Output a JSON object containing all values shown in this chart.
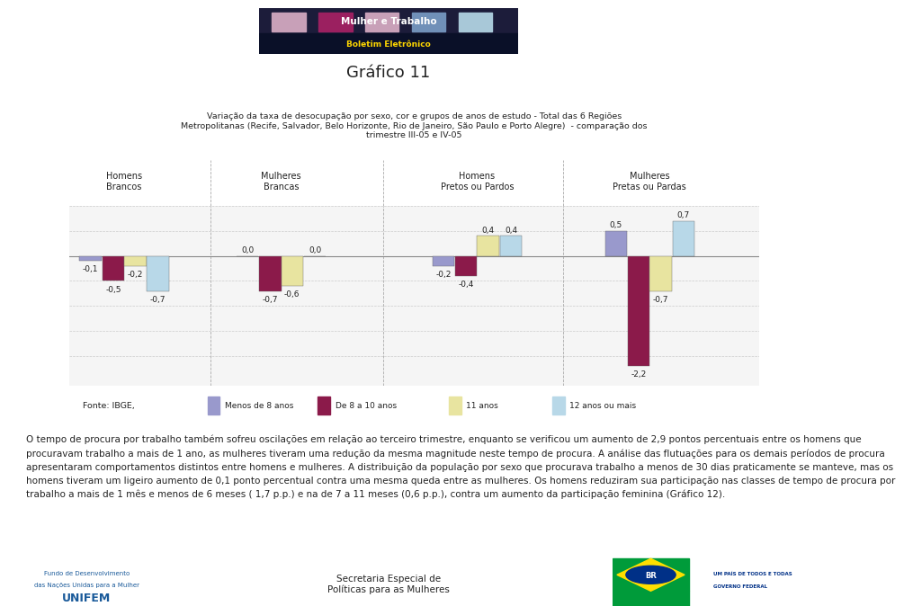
{
  "title_main": "Gráfico 11",
  "subtitle": "Variação da taxa de desocupação por sexo, cor e grupos de anos de estudo - Total das 6 Regiões\nMetropolitanas (Recife, Salvador, Belo Horizonte, Rio de Janeiro, São Paulo e Porto Alegre)  - comparação dos\ntrimestre III-05 e IV-05",
  "group_labels": [
    "Homens\nBrancos",
    "Mulheres\nBrancas",
    "Homens\nPretos ou Pardos",
    "Mulheres\nPretas ou Pardas"
  ],
  "legend_labels": [
    "Menos de 8 anos",
    "De 8 a 10 anos",
    "11 anos",
    "12 anos ou mais"
  ],
  "bar_colors": [
    "#9999cc",
    "#8B1A4A",
    "#E8E4A0",
    "#B8D8E8"
  ],
  "fonte": "Fonte: IBGE,",
  "data_values": [
    [
      -0.1,
      -0.5,
      -0.2,
      -0.7
    ],
    [
      0.0,
      -0.7,
      -0.6,
      0.0
    ],
    [
      -0.2,
      -0.4,
      0.4,
      0.4
    ],
    [
      0.5,
      -2.2,
      -0.7,
      0.7
    ]
  ],
  "ylim": [
    -2.6,
    1.0
  ],
  "body_text_lines": [
    "O tempo de procura por trabalho também sofreu oscilações em relação ao terceiro trimestre, enquanto se verificou um aumento de 2,9 pontos percentuais entre os homens que",
    "procuravam trabalho a mais de 1 ano, as mulheres tiveram uma redução da mesma magnitude neste tempo de procura. A análise das flutuações para os demais períodos de procura",
    "apresentaram comportamentos distintos entre homens e mulheres. A distribuição da população por sexo que procurava trabalho a menos de 30 dias praticamente se manteve, mas os",
    "homens tiveram um ligeiro aumento de 0,1 ponto percentual contra uma mesma queda entre as mulheres. Os homens reduziram sua participação nas classes de tempo de procura por",
    "trabalho a mais de 1 mês e menos de 6 meses ( 1,7 p.p.) e na de 7 a 11 meses (0,6 p.p.), contra um aumento da participação feminina (Gráfico 12)."
  ],
  "header_bg": "#1C1C3A",
  "header_stripe": "#2A3A6A",
  "boletim_bg": "#1A2040",
  "chart_outer_bg": "#EBEBEB",
  "chart_inner_bg": "#F5F5F5",
  "legend_bg": "#E0E0E0",
  "footer_text_center": "Secretaria Especial de\nPolíticas para as Mulheres",
  "group_centers": [
    0.5,
    2.5,
    5.0,
    7.2
  ],
  "xlim": [
    -0.2,
    8.6
  ]
}
